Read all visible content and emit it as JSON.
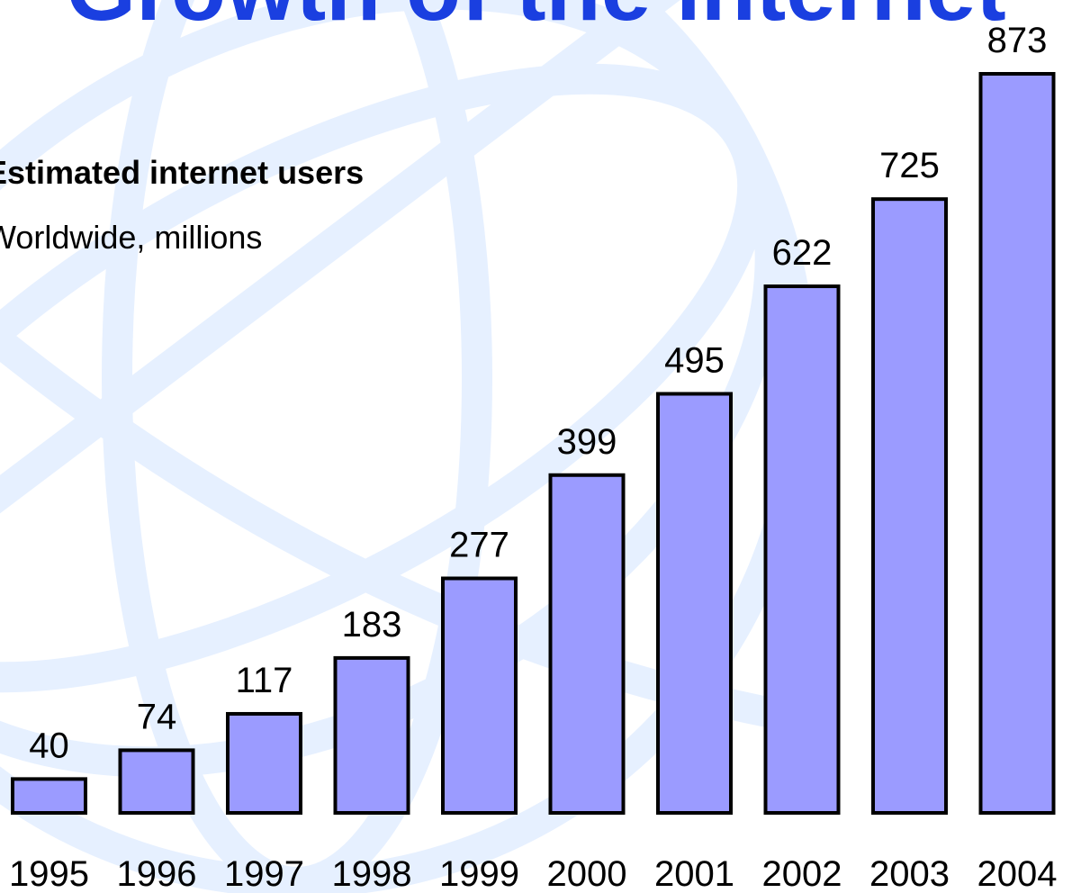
{
  "chart_data": {
    "type": "bar",
    "title": "Growth of the internet",
    "subtitle": "Estimated internet users",
    "subtitle2": "Worldwide, millions",
    "categories": [
      "1995",
      "1996",
      "1997",
      "1998",
      "1999",
      "2000",
      "2001",
      "2002",
      "2003",
      "2004"
    ],
    "values": [
      40,
      74,
      117,
      183,
      277,
      399,
      495,
      622,
      725,
      873
    ],
    "xlabel": "",
    "ylabel": "",
    "ylim": [
      0,
      873
    ],
    "grid": false,
    "legend": "none",
    "colors": {
      "bar_fill": "#9b9bff",
      "bar_stroke": "#000000",
      "title": "#1a3fe0",
      "globe_lines": "#e6f0ff"
    }
  }
}
